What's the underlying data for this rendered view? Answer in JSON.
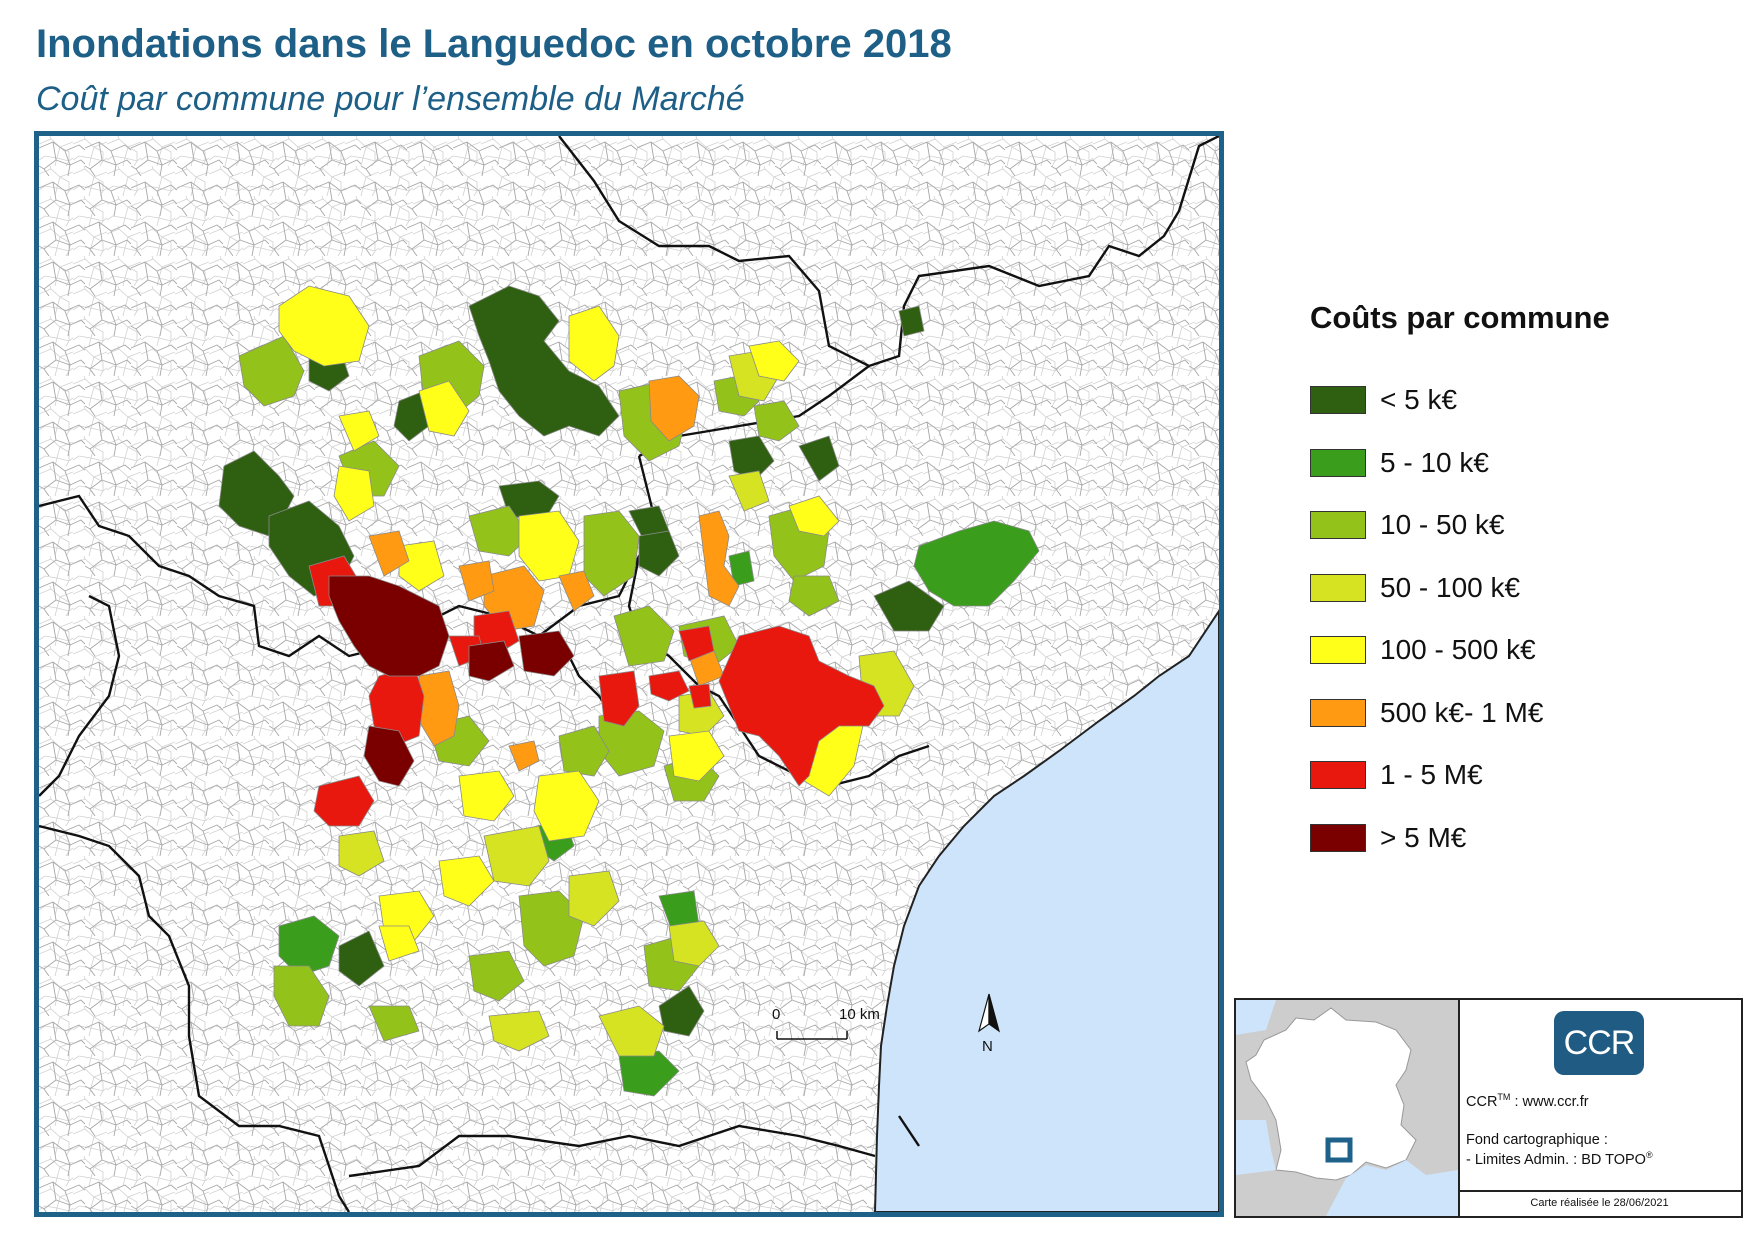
{
  "title": "Inondations dans le Languedoc en octobre 2018",
  "subtitle": "Coût par commune pour l’ensemble du Marché",
  "legend": {
    "title": "Coûts par commune",
    "classes": [
      {
        "label": "< 5 k€",
        "color": "#2f5f11"
      },
      {
        "label": "5 - 10 k€",
        "color": "#3a9e1c"
      },
      {
        "label": "10 - 50 k€",
        "color": "#93c31a"
      },
      {
        "label": "50 - 100 k€",
        "color": "#d5e322"
      },
      {
        "label": "100 - 500 k€",
        "color": "#ffff1a"
      },
      {
        "label": "500 k€- 1 M€",
        "color": "#ff9a12"
      },
      {
        "label": "1 - 5 M€",
        "color": "#e8180f"
      },
      {
        "label": "> 5 M€",
        "color": "#7a0000"
      }
    ]
  },
  "scale": {
    "start": "0",
    "end": "10 km"
  },
  "north": "N",
  "credits": {
    "logo": "CCR",
    "site_prefix": "CCR",
    "site_tm": "TM",
    "site": ": www.ccr.fr",
    "fond_label": "Fond cartographique :",
    "source_prefix": "- Limites Admin. : BD TOPO",
    "source_reg": "®",
    "date": "Carte réalisée le 28/06/2021"
  },
  "colors": {
    "frame": "#1e6289",
    "sea": "#cde4fb",
    "boundary": "#9a9a9a",
    "dept": "#111111"
  }
}
